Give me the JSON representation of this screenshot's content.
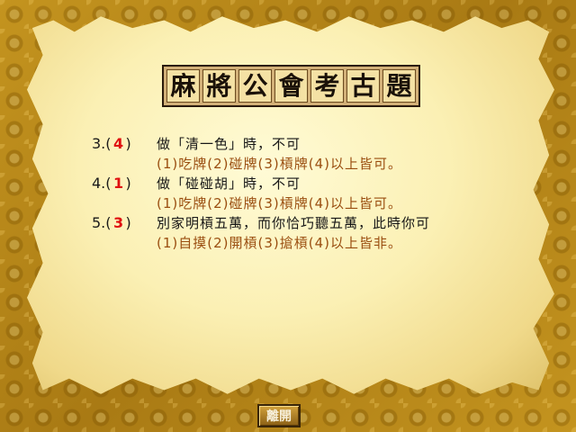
{
  "title_chars": [
    "麻",
    "將",
    "公",
    "會",
    "考",
    "古",
    "題"
  ],
  "questions": [
    {
      "number": "3.",
      "open": "(",
      "answer": "4",
      "close": ")",
      "text": "做「清一色」時，不可",
      "options": "(1)吃牌(2)碰牌(3)槓牌(4)以上皆可。"
    },
    {
      "number": "4.",
      "open": "(",
      "answer": "1",
      "close": ")",
      "text": "做「碰碰胡」時，不可",
      "options": "(1)吃牌(2)碰牌(3)槓牌(4)以上皆可。"
    },
    {
      "number": "5.",
      "open": "(",
      "answer": "3",
      "close": ")",
      "text": "別家明槓五萬，而你恰巧聽五萬，此時你可",
      "options": "(1)自摸(2)開槓(3)搶槓(4)以上皆非。"
    }
  ],
  "leave_button": {
    "label": "離開"
  },
  "colors": {
    "answer": "#e01010",
    "options": "#9a4e10",
    "question": "#161616",
    "parchment": "#fbf0b4",
    "background": "#b98a1e"
  }
}
